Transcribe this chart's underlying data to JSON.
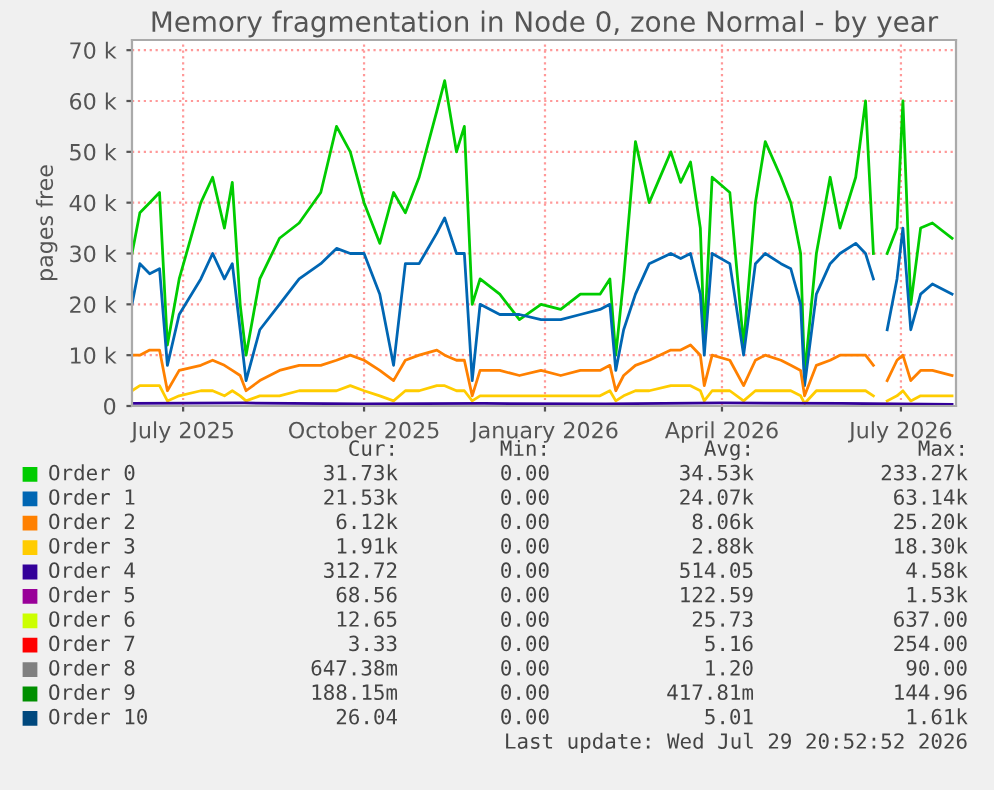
{
  "chart_data": {
    "type": "line",
    "title": "Memory fragmentation in Node 0, zone Normal - by year",
    "ylabel": "pages free",
    "x": [
      "2025-06-05",
      "2025-06-09",
      "2025-06-14",
      "2025-06-19",
      "2025-06-23",
      "2025-06-29",
      "2025-07-10",
      "2025-07-16",
      "2025-07-22",
      "2025-07-26",
      "2025-07-30",
      "2025-08-02",
      "2025-08-09",
      "2025-08-19",
      "2025-08-29",
      "2025-09-09",
      "2025-09-17",
      "2025-09-24",
      "2025-10-01",
      "2025-10-09",
      "2025-10-16",
      "2025-10-22",
      "2025-10-29",
      "2025-11-07",
      "2025-11-11",
      "2025-11-17",
      "2025-11-21",
      "2025-11-25",
      "2025-11-29",
      "2025-12-09",
      "2025-12-19",
      "2025-12-30",
      "2026-01-09",
      "2026-01-19",
      "2026-01-29",
      "2026-02-03",
      "2026-02-06",
      "2026-02-10",
      "2026-02-16",
      "2026-02-23",
      "2026-03-06",
      "2026-03-11",
      "2026-03-16",
      "2026-03-21",
      "2026-03-23",
      "2026-03-27",
      "2026-04-05",
      "2026-04-12",
      "2026-04-18",
      "2026-04-23",
      "2026-05-01",
      "2026-05-06",
      "2026-05-11",
      "2026-05-13",
      "2026-05-19",
      "2026-05-26",
      "2026-05-31",
      "2026-06-08",
      "2026-06-13",
      "2026-06-17",
      "2026-06-20",
      "2026-06-24",
      "2026-06-29",
      "2026-07-02",
      "2026-07-06",
      "2026-07-11",
      "2026-07-17",
      "2026-07-27"
    ],
    "series": [
      {
        "name": "Order 0",
        "color": "#00cc00",
        "values": [
          30000,
          38000,
          40000,
          42000,
          12000,
          25000,
          40000,
          45000,
          35000,
          44000,
          20000,
          10000,
          25000,
          33000,
          36000,
          42000,
          55000,
          50000,
          40000,
          32000,
          42000,
          38000,
          45000,
          58000,
          64000,
          50000,
          55000,
          20000,
          25000,
          22000,
          17000,
          20000,
          19000,
          22000,
          22000,
          25000,
          10000,
          25000,
          52000,
          40000,
          50000,
          44000,
          48000,
          35000,
          13000,
          45000,
          42000,
          12000,
          40000,
          52000,
          45000,
          40000,
          30000,
          6000,
          30000,
          45000,
          35000,
          45000,
          60000,
          30000,
          null,
          30000,
          35000,
          60000,
          20000,
          35000,
          36000,
          33000
        ]
      },
      {
        "name": "Order 1",
        "color": "#0066b3",
        "values": [
          20000,
          28000,
          26000,
          27000,
          8000,
          18000,
          25000,
          30000,
          25000,
          28000,
          15000,
          5000,
          15000,
          20000,
          25000,
          28000,
          31000,
          30000,
          30000,
          22000,
          8000,
          28000,
          28000,
          34000,
          37000,
          30000,
          30000,
          5000,
          20000,
          18000,
          18000,
          17000,
          17000,
          18000,
          19000,
          20000,
          7000,
          15000,
          22000,
          28000,
          30000,
          29000,
          30000,
          22000,
          10000,
          30000,
          28000,
          10000,
          28000,
          30000,
          28000,
          27000,
          20000,
          4000,
          22000,
          28000,
          30000,
          32000,
          30000,
          25000,
          null,
          15000,
          25000,
          35000,
          15000,
          22000,
          24000,
          22000
        ]
      },
      {
        "name": "Order 2",
        "color": "#ff8000",
        "values": [
          10000,
          10000,
          11000,
          11000,
          3000,
          7000,
          8000,
          9000,
          8000,
          7000,
          6000,
          3000,
          5000,
          7000,
          8000,
          8000,
          9000,
          10000,
          9000,
          7000,
          5000,
          9000,
          10000,
          11000,
          10000,
          9000,
          9000,
          2000,
          7000,
          7000,
          6000,
          7000,
          6000,
          7000,
          7000,
          8000,
          3000,
          6000,
          8000,
          9000,
          11000,
          11000,
          12000,
          10000,
          4000,
          10000,
          9000,
          4000,
          9000,
          10000,
          9000,
          8000,
          7000,
          2000,
          8000,
          9000,
          10000,
          10000,
          10000,
          8000,
          null,
          5000,
          9000,
          10000,
          5000,
          7000,
          7000,
          6000
        ]
      },
      {
        "name": "Order 3",
        "color": "#ffcc00",
        "values": [
          3000,
          4000,
          4000,
          4000,
          1000,
          2000,
          3000,
          3000,
          2000,
          3000,
          2000,
          1000,
          2000,
          2000,
          3000,
          3000,
          3000,
          4000,
          3000,
          2000,
          1000,
          3000,
          3000,
          4000,
          4000,
          3000,
          3000,
          1000,
          2000,
          2000,
          2000,
          2000,
          2000,
          2000,
          2000,
          3000,
          1000,
          2000,
          3000,
          3000,
          4000,
          4000,
          4000,
          3000,
          1000,
          3000,
          3000,
          1000,
          3000,
          3000,
          3000,
          3000,
          2000,
          500,
          3000,
          3000,
          3000,
          3000,
          3000,
          2000,
          null,
          1000,
          2000,
          3000,
          1000,
          2000,
          2000,
          2000
        ]
      },
      {
        "name": "Order 4",
        "color": "#330099",
        "x": [
          "2025-06-05",
          "2025-08-01",
          "2025-10-01",
          "2025-12-01",
          "2026-02-01",
          "2026-04-01",
          "2026-06-01",
          "2026-07-27"
        ],
        "values": [
          500,
          600,
          400,
          500,
          400,
          600,
          500,
          300
        ]
      },
      {
        "name": "Order 5",
        "color": "#990099",
        "values": [
          null,
          null,
          null,
          null,
          null,
          null,
          null,
          null,
          null,
          null,
          null,
          null,
          null,
          null,
          null,
          null,
          null,
          null,
          null,
          null,
          null,
          null,
          null,
          null,
          null,
          null,
          null,
          null,
          null,
          null,
          null,
          null,
          null,
          null,
          null,
          null,
          null,
          null,
          null,
          null,
          null,
          null,
          null,
          null,
          null,
          null,
          null,
          null,
          null,
          null,
          null,
          null,
          null,
          null,
          null,
          null,
          null,
          null,
          null,
          null,
          null,
          null,
          null,
          null,
          null,
          null,
          null,
          null
        ]
      },
      {
        "name": "Order 6",
        "color": "#ccff00",
        "values": [
          null,
          null,
          null,
          null,
          null,
          null,
          null,
          null,
          null,
          null,
          null,
          null,
          null,
          null,
          null,
          null,
          null,
          null,
          null,
          null,
          null,
          null,
          null,
          null,
          null,
          null,
          null,
          null,
          null,
          null,
          null,
          null,
          null,
          null,
          null,
          null,
          null,
          null,
          null,
          null,
          null,
          null,
          null,
          null,
          null,
          null,
          null,
          null,
          null,
          null,
          null,
          null,
          null,
          null,
          null,
          null,
          null,
          null,
          null,
          null,
          null,
          null,
          null,
          null,
          null,
          null,
          null,
          null
        ]
      },
      {
        "name": "Order 7",
        "color": "#ff0000",
        "values": [
          null,
          null,
          null,
          null,
          null,
          null,
          null,
          null,
          null,
          null,
          null,
          null,
          null,
          null,
          null,
          null,
          null,
          null,
          null,
          null,
          null,
          null,
          null,
          null,
          null,
          null,
          null,
          null,
          null,
          null,
          null,
          null,
          null,
          null,
          null,
          null,
          null,
          null,
          null,
          null,
          null,
          null,
          null,
          null,
          null,
          null,
          null,
          null,
          null,
          null,
          null,
          null,
          null,
          null,
          null,
          null,
          null,
          null,
          null,
          null,
          null,
          null,
          null,
          null,
          null,
          null,
          null,
          null
        ]
      },
      {
        "name": "Order 8",
        "color": "#808080",
        "values": [
          null,
          null,
          null,
          null,
          null,
          null,
          null,
          null,
          null,
          null,
          null,
          null,
          null,
          null,
          null,
          null,
          null,
          null,
          null,
          null,
          null,
          null,
          null,
          null,
          null,
          null,
          null,
          null,
          null,
          null,
          null,
          null,
          null,
          null,
          null,
          null,
          null,
          null,
          null,
          null,
          null,
          null,
          null,
          null,
          null,
          null,
          null,
          null,
          null,
          null,
          null,
          null,
          null,
          null,
          null,
          null,
          null,
          null,
          null,
          null,
          null,
          null,
          null,
          null,
          null,
          null,
          null,
          null
        ]
      },
      {
        "name": "Order 9",
        "color": "#008f00",
        "values": [
          null,
          null,
          null,
          null,
          null,
          null,
          null,
          null,
          null,
          null,
          null,
          null,
          null,
          null,
          null,
          null,
          null,
          null,
          null,
          null,
          null,
          null,
          null,
          null,
          null,
          null,
          null,
          null,
          null,
          null,
          null,
          null,
          null,
          null,
          null,
          null,
          null,
          null,
          null,
          null,
          null,
          null,
          null,
          null,
          null,
          null,
          null,
          null,
          null,
          null,
          null,
          null,
          null,
          null,
          null,
          null,
          null,
          null,
          null,
          null,
          null,
          null,
          null,
          null,
          null,
          null,
          null,
          null
        ]
      },
      {
        "name": "Order 10",
        "color": "#00487d",
        "values": [
          null,
          null,
          null,
          null,
          null,
          null,
          null,
          null,
          null,
          null,
          null,
          null,
          null,
          null,
          null,
          null,
          null,
          null,
          null,
          null,
          null,
          null,
          null,
          null,
          null,
          null,
          null,
          null,
          null,
          null,
          null,
          null,
          null,
          null,
          null,
          null,
          null,
          null,
          null,
          null,
          null,
          null,
          null,
          null,
          null,
          null,
          null,
          null,
          null,
          null,
          null,
          null,
          null,
          null,
          null,
          null,
          null,
          null,
          null,
          null,
          null,
          null,
          null,
          null,
          null,
          null,
          null,
          null
        ]
      }
    ],
    "xlim": [
      "2025-06-05",
      "2026-07-29"
    ],
    "xticks": [
      {
        "value": "2025-07-01",
        "label": "July 2025"
      },
      {
        "value": "2025-10-01",
        "label": "October 2025"
      },
      {
        "value": "2026-01-01",
        "label": "January 2026"
      },
      {
        "value": "2026-04-01",
        "label": "April 2026"
      },
      {
        "value": "2026-07-01",
        "label": "July 2026"
      }
    ],
    "ylim": [
      0,
      72000
    ],
    "yticks": [
      0,
      {
        "value": 10000,
        "label": "10 k"
      },
      {
        "value": 20000,
        "label": "20 k"
      },
      {
        "value": 30000,
        "label": "30 k"
      },
      {
        "value": 40000,
        "label": "40 k"
      },
      {
        "value": 50000,
        "label": "50 k"
      },
      {
        "value": 60000,
        "label": "60 k"
      },
      {
        "value": 70000,
        "label": "70 k"
      }
    ],
    "grid": true,
    "legend": "bottom",
    "line_style": "solid",
    "annotations": [
      "Cur:",
      "Min:",
      "Avg:",
      "Max:",
      "31.73k",
      "0.00",
      "34.53k",
      "233.27k",
      "21.53k",
      "0.00",
      "24.07k",
      "63.14k",
      "6.12k",
      "0.00",
      "8.06k",
      "25.20k",
      "1.91k",
      "0.00",
      "2.88k",
      "18.30k",
      "312.72",
      "0.00",
      "514.05",
      "4.58k",
      "68.56",
      "0.00",
      "122.59",
      "1.53k",
      "12.65",
      "0.00",
      "25.73",
      "637.00",
      "3.33",
      "0.00",
      "5.16",
      "254.00",
      "647.38m",
      "0.00",
      "1.20",
      "90.00",
      "188.15m",
      "0.00",
      "417.81m",
      "144.96",
      "26.04",
      "0.00",
      "5.01",
      "1.61k",
      "Last update: Wed Jul 29 20:52:52 2026"
    ]
  }
}
